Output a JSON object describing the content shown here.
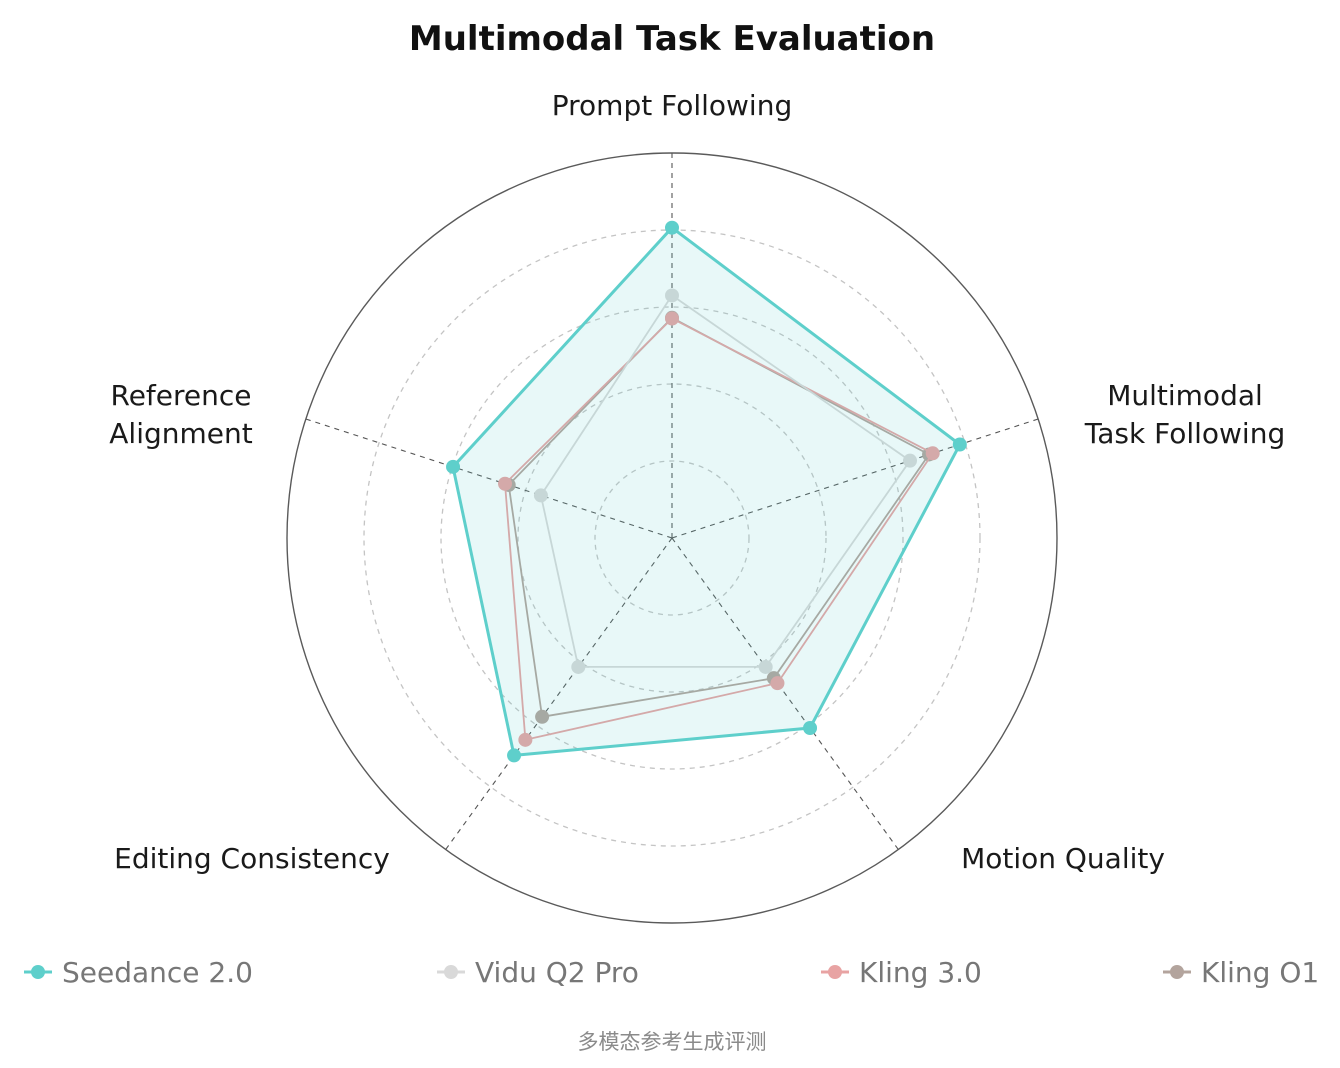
{
  "chart_data": {
    "type": "radar",
    "title": "Multimodal Task Evaluation",
    "axes": [
      {
        "name": "Prompt Following",
        "lines": [
          "Prompt Following"
        ]
      },
      {
        "name": "Multimodal Task Following",
        "lines": [
          "Multimodal",
          "Task Following"
        ]
      },
      {
        "name": "Motion Quality",
        "lines": [
          "Motion Quality"
        ]
      },
      {
        "name": "Editing Consistency",
        "lines": [
          "Editing Consistency"
        ]
      },
      {
        "name": "Reference Alignment",
        "lines": [
          "Reference",
          "Alignment"
        ]
      }
    ],
    "range": [
      0,
      5
    ],
    "grid_levels": [
      1,
      2,
      3,
      4
    ],
    "grid": true,
    "series": [
      {
        "name": "Seedance 2.0",
        "color": "#5ECFCB",
        "values": [
          4.03,
          3.93,
          3.05,
          3.49,
          2.99
        ],
        "fill": true
      },
      {
        "name": "Vidu Q2 Pro",
        "color": "#D9D9D9",
        "values": [
          3.15,
          3.25,
          2.07,
          2.07,
          1.79
        ],
        "fill": false
      },
      {
        "name": "Kling 3.0",
        "color": "#E8A3A3",
        "values": [
          2.85,
          3.56,
          2.33,
          3.24,
          2.28
        ],
        "fill": false
      },
      {
        "name": "Kling O1",
        "color": "#B3A49D",
        "values": [
          2.86,
          3.51,
          2.25,
          2.87,
          2.23
        ],
        "fill": false
      }
    ],
    "legend_position": "bottom"
  },
  "caption": "多模态参考生成评测"
}
